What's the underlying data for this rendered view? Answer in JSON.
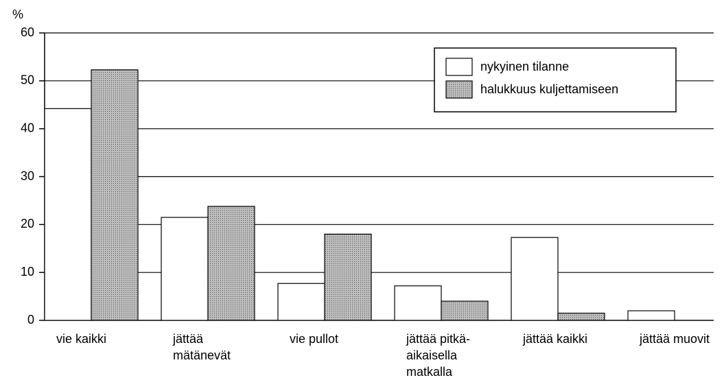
{
  "chart_data": {
    "type": "bar",
    "y_label": "%",
    "categories": [
      "vie kaikki",
      "jättää\nmätänevät",
      "vie pullot",
      "jättää pitkä-\naikaisella\nmatkalla",
      "jättää kaikki",
      "jättää muovit"
    ],
    "series": [
      {
        "name": "nykyinen tilanne",
        "color": "#ffffff",
        "values": [
          44.2,
          21.5,
          7.7,
          7.2,
          17.3,
          2.0
        ]
      },
      {
        "name": "halukkuus kuljettamiseen",
        "color": "#a9a9a9",
        "values": [
          52.3,
          23.8,
          18.0,
          4.0,
          1.5,
          0
        ]
      }
    ],
    "ylim": [
      0,
      60
    ],
    "yticks": [
      0,
      10,
      20,
      30,
      40,
      50,
      60
    ],
    "grid": true,
    "legend": "upper right"
  }
}
